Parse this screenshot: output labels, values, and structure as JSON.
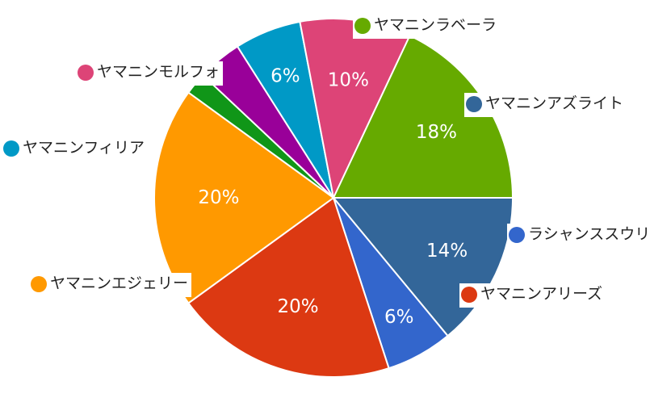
{
  "chart_data": {
    "type": "pie",
    "title": "",
    "slices": [
      {
        "label": "ヤマニンアズライト",
        "value": 14,
        "value_label": "14%",
        "color": "#336699"
      },
      {
        "label": "ラシャンススウリ",
        "value": 6,
        "value_label": "6%",
        "color": "#3366cc"
      },
      {
        "label": "ヤマニンアリーズ",
        "value": 20,
        "value_label": "20%",
        "color": "#dc3912"
      },
      {
        "label": "ヤマニンエジェリー",
        "value": 20,
        "value_label": "20%",
        "color": "#ff9900"
      },
      {
        "label": "",
        "value": 2,
        "value_label": "",
        "color": "#109618"
      },
      {
        "label": "",
        "value": 4,
        "value_label": "",
        "color": "#990099"
      },
      {
        "label": "ヤマニンフィリア",
        "value": 6,
        "value_label": "6%",
        "color": "#0099c6"
      },
      {
        "label": "ヤマニンモルフォ",
        "value": 10,
        "value_label": "10%",
        "color": "#dd4477"
      },
      {
        "label": "ヤマニンラベーラ",
        "value": 18,
        "value_label": "18%",
        "color": "#66aa00"
      }
    ],
    "start_angle_deg": 90,
    "direction": "clockwise",
    "legend": "labels beside slices with colored dots"
  }
}
